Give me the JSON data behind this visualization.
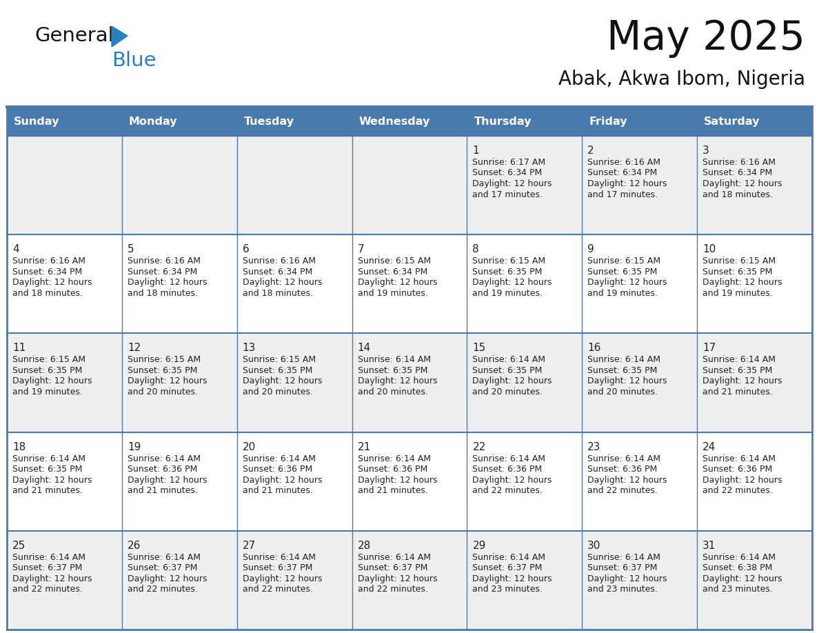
{
  "title": "May 2025",
  "subtitle": "Abak, Akwa Ibom, Nigeria",
  "header_bg_color": "#4a7aad",
  "header_text_color": "#FFFFFF",
  "day_names": [
    "Sunday",
    "Monday",
    "Tuesday",
    "Wednesday",
    "Thursday",
    "Friday",
    "Saturday"
  ],
  "odd_row_bg": "#EFEFEF",
  "even_row_bg": "#FFFFFF",
  "cell_border_color": "#4a7aad",
  "date_color": "#222222",
  "info_color": "#222222",
  "logo_general_color": "#1a1a1a",
  "logo_blue_color": "#2980C0",
  "logo_triangle_color": "#2980C0",
  "weeks": [
    [
      null,
      null,
      null,
      null,
      1,
      2,
      3
    ],
    [
      4,
      5,
      6,
      7,
      8,
      9,
      10
    ],
    [
      11,
      12,
      13,
      14,
      15,
      16,
      17
    ],
    [
      18,
      19,
      20,
      21,
      22,
      23,
      24
    ],
    [
      25,
      26,
      27,
      28,
      29,
      30,
      31
    ]
  ],
  "cell_data": {
    "1": {
      "sunrise": "6:17 AM",
      "sunset": "6:34 PM",
      "daylight": "12 hours and 17 minutes."
    },
    "2": {
      "sunrise": "6:16 AM",
      "sunset": "6:34 PM",
      "daylight": "12 hours and 17 minutes."
    },
    "3": {
      "sunrise": "6:16 AM",
      "sunset": "6:34 PM",
      "daylight": "12 hours and 18 minutes."
    },
    "4": {
      "sunrise": "6:16 AM",
      "sunset": "6:34 PM",
      "daylight": "12 hours and 18 minutes."
    },
    "5": {
      "sunrise": "6:16 AM",
      "sunset": "6:34 PM",
      "daylight": "12 hours and 18 minutes."
    },
    "6": {
      "sunrise": "6:16 AM",
      "sunset": "6:34 PM",
      "daylight": "12 hours and 18 minutes."
    },
    "7": {
      "sunrise": "6:15 AM",
      "sunset": "6:34 PM",
      "daylight": "12 hours and 19 minutes."
    },
    "8": {
      "sunrise": "6:15 AM",
      "sunset": "6:35 PM",
      "daylight": "12 hours and 19 minutes."
    },
    "9": {
      "sunrise": "6:15 AM",
      "sunset": "6:35 PM",
      "daylight": "12 hours and 19 minutes."
    },
    "10": {
      "sunrise": "6:15 AM",
      "sunset": "6:35 PM",
      "daylight": "12 hours and 19 minutes."
    },
    "11": {
      "sunrise": "6:15 AM",
      "sunset": "6:35 PM",
      "daylight": "12 hours and 19 minutes."
    },
    "12": {
      "sunrise": "6:15 AM",
      "sunset": "6:35 PM",
      "daylight": "12 hours and 20 minutes."
    },
    "13": {
      "sunrise": "6:15 AM",
      "sunset": "6:35 PM",
      "daylight": "12 hours and 20 minutes."
    },
    "14": {
      "sunrise": "6:14 AM",
      "sunset": "6:35 PM",
      "daylight": "12 hours and 20 minutes."
    },
    "15": {
      "sunrise": "6:14 AM",
      "sunset": "6:35 PM",
      "daylight": "12 hours and 20 minutes."
    },
    "16": {
      "sunrise": "6:14 AM",
      "sunset": "6:35 PM",
      "daylight": "12 hours and 20 minutes."
    },
    "17": {
      "sunrise": "6:14 AM",
      "sunset": "6:35 PM",
      "daylight": "12 hours and 21 minutes."
    },
    "18": {
      "sunrise": "6:14 AM",
      "sunset": "6:35 PM",
      "daylight": "12 hours and 21 minutes."
    },
    "19": {
      "sunrise": "6:14 AM",
      "sunset": "6:36 PM",
      "daylight": "12 hours and 21 minutes."
    },
    "20": {
      "sunrise": "6:14 AM",
      "sunset": "6:36 PM",
      "daylight": "12 hours and 21 minutes."
    },
    "21": {
      "sunrise": "6:14 AM",
      "sunset": "6:36 PM",
      "daylight": "12 hours and 21 minutes."
    },
    "22": {
      "sunrise": "6:14 AM",
      "sunset": "6:36 PM",
      "daylight": "12 hours and 22 minutes."
    },
    "23": {
      "sunrise": "6:14 AM",
      "sunset": "6:36 PM",
      "daylight": "12 hours and 22 minutes."
    },
    "24": {
      "sunrise": "6:14 AM",
      "sunset": "6:36 PM",
      "daylight": "12 hours and 22 minutes."
    },
    "25": {
      "sunrise": "6:14 AM",
      "sunset": "6:37 PM",
      "daylight": "12 hours and 22 minutes."
    },
    "26": {
      "sunrise": "6:14 AM",
      "sunset": "6:37 PM",
      "daylight": "12 hours and 22 minutes."
    },
    "27": {
      "sunrise": "6:14 AM",
      "sunset": "6:37 PM",
      "daylight": "12 hours and 22 minutes."
    },
    "28": {
      "sunrise": "6:14 AM",
      "sunset": "6:37 PM",
      "daylight": "12 hours and 22 minutes."
    },
    "29": {
      "sunrise": "6:14 AM",
      "sunset": "6:37 PM",
      "daylight": "12 hours and 23 minutes."
    },
    "30": {
      "sunrise": "6:14 AM",
      "sunset": "6:37 PM",
      "daylight": "12 hours and 23 minutes."
    },
    "31": {
      "sunrise": "6:14 AM",
      "sunset": "6:38 PM",
      "daylight": "12 hours and 23 minutes."
    }
  },
  "figsize": [
    11.88,
    9.18
  ],
  "dpi": 100
}
